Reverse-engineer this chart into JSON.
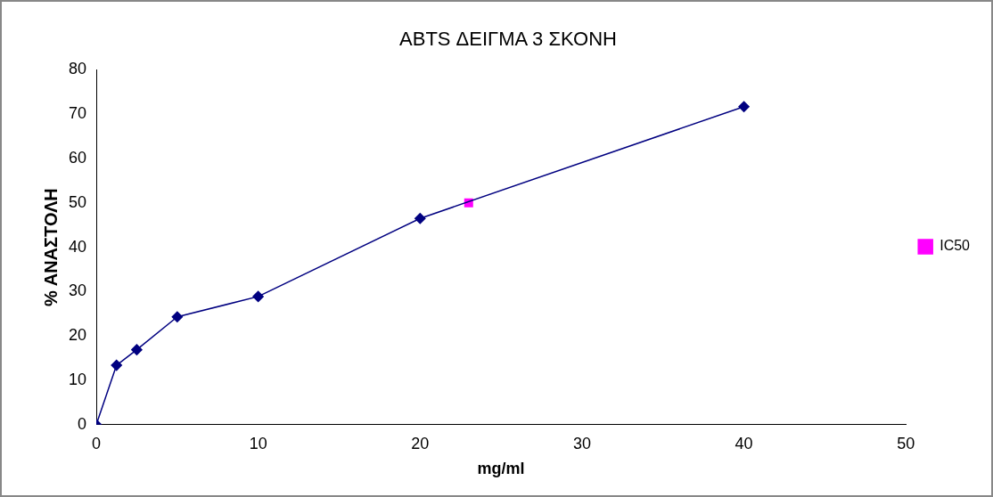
{
  "chart_data": {
    "type": "line",
    "title": "ABTS ΔΕΙΓΜΑ 3 ΣΚΟΝΗ",
    "xlabel": "mg/ml",
    "ylabel": "% ΑΝΑΣΤΟΛΗ",
    "series": [
      {
        "color": "#000080",
        "marker": "diamond",
        "x": [
          0,
          1.25,
          2.5,
          5,
          10,
          20,
          40
        ],
        "values": [
          0,
          13.4,
          16.9,
          24.3,
          28.9,
          46.5,
          71.7
        ]
      },
      {
        "name": "IC50",
        "color": "#ff00ff",
        "marker": "square",
        "x": [
          23
        ],
        "values": [
          50
        ]
      }
    ],
    "xlim": [
      0,
      50
    ],
    "xticks": [
      0,
      10,
      20,
      30,
      40,
      50
    ],
    "ylim": [
      0,
      80
    ],
    "yticks": [
      0,
      10,
      20,
      30,
      40,
      50,
      60,
      70,
      80
    ],
    "grid": false,
    "legend": "right"
  }
}
